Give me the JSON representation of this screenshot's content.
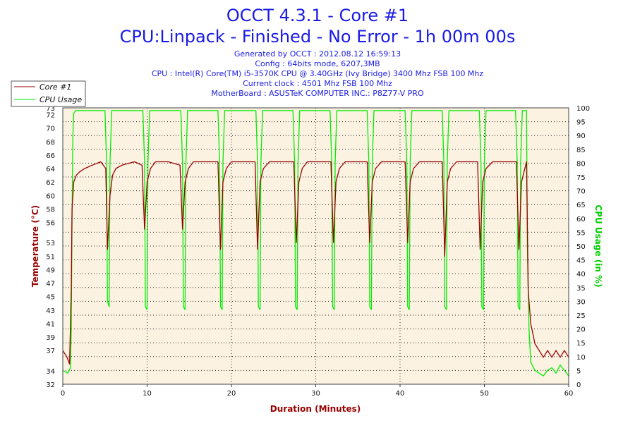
{
  "header": {
    "title_line1": "OCCT 4.3.1 - Core #1",
    "title_line2": "CPU:Linpack - Finished - No Error - 1h 00m 00s",
    "info_lines": [
      "Generated by OCCT : 2012.08.12 16:59:13",
      "Config : 64bits mode, 6207,3MB",
      "CPU : Intel(R) Core(TM) i5-3570K CPU @ 3.40GHz (Ivy Bridge) 3400 Mhz FSB 100 Mhz",
      "Current clock : 4501 Mhz FSB 100 Mhz",
      "MotherBoard : ASUSTeK COMPUTER INC.: P8Z77-V PRO"
    ]
  },
  "colors": {
    "plot_bg": "#fbf2e2",
    "temp_series": "#990000",
    "usage_series": "#00ee00",
    "title": "#1a1ae6",
    "axis_left_label": "#990000",
    "axis_right_label": "#00cc00",
    "axis_bottom_label": "#990000",
    "grid": "#222222"
  },
  "chart_data": {
    "type": "line",
    "title": "OCCT 4.3.1 - Core #1",
    "subtitle": "CPU:Linpack - Finished - No Error - 1h 00m 00s",
    "xlabel": "Duration (Minutes)",
    "ylabel": "Temperature (°C)",
    "y2label": "CPU Usage (in %)",
    "xlim": [
      0,
      60
    ],
    "ylim": [
      32,
      73
    ],
    "y2lim": [
      0,
      100
    ],
    "x_ticks": [
      0,
      10,
      20,
      30,
      40,
      50,
      60
    ],
    "y_ticks": [
      32,
      34,
      37,
      39,
      41,
      43,
      45,
      47,
      49,
      51,
      53,
      56,
      58,
      60,
      62,
      64,
      66,
      68,
      70,
      72,
      73
    ],
    "y2_ticks": [
      0,
      5,
      10,
      15,
      20,
      25,
      30,
      35,
      40,
      45,
      50,
      55,
      60,
      65,
      70,
      75,
      80,
      85,
      90,
      95,
      100
    ],
    "grid": true,
    "legend": {
      "position": "top-left",
      "entries": [
        "Core #1",
        "CPU Usage"
      ]
    },
    "series": [
      {
        "name": "Core #1",
        "axis": "left",
        "x": [
          0,
          0.5,
          0.8,
          1.0,
          1.1,
          1.3,
          1.6,
          2.0,
          2.6,
          3.5,
          4.5,
          5.1,
          5.3,
          5.6,
          5.9,
          6.3,
          7.0,
          8.5,
          9.4,
          9.7,
          10.0,
          10.4,
          11.0,
          12.5,
          13.9,
          14.2,
          14.5,
          14.9,
          15.5,
          17.0,
          18.4,
          18.7,
          19.0,
          19.4,
          20.0,
          21.5,
          22.8,
          23.1,
          23.4,
          23.8,
          24.5,
          26.0,
          27.4,
          27.7,
          28.0,
          28.4,
          29.0,
          30.5,
          31.8,
          32.1,
          32.4,
          32.8,
          33.5,
          35.0,
          36.1,
          36.4,
          36.7,
          37.1,
          37.8,
          39.5,
          40.6,
          40.9,
          41.2,
          41.6,
          42.3,
          44.0,
          45.0,
          45.3,
          45.6,
          46.0,
          46.7,
          48.2,
          49.2,
          49.5,
          49.8,
          50.2,
          51.0,
          52.5,
          53.8,
          54.1,
          54.4,
          54.8,
          55.0,
          55.2,
          55.5,
          56.0,
          56.5,
          57.0,
          57.5,
          58.0,
          58.5,
          59.0,
          59.5,
          60.0
        ],
        "y": [
          37,
          36,
          35,
          46,
          58,
          62,
          63,
          63.5,
          64,
          64.5,
          65,
          64,
          52,
          60,
          63,
          64,
          64.5,
          65,
          64.5,
          55,
          62,
          64,
          65,
          65,
          64.5,
          55,
          62,
          64,
          65,
          65,
          65,
          52,
          62,
          64,
          65,
          65,
          65,
          52,
          62,
          64,
          65,
          65,
          65,
          53,
          62,
          64,
          65,
          65,
          65,
          53,
          62,
          64,
          65,
          65,
          65,
          53,
          62,
          64,
          65,
          65,
          65,
          53,
          62,
          64,
          65,
          65,
          65,
          51,
          62,
          64,
          65,
          65,
          65,
          52,
          62,
          64,
          65,
          65,
          65,
          52,
          62,
          64,
          65,
          46,
          41,
          38,
          37,
          36,
          37,
          36,
          37,
          36,
          37,
          36
        ]
      },
      {
        "name": "CPU Usage",
        "axis": "right",
        "x": [
          0,
          0.6,
          0.9,
          1.0,
          1.1,
          1.2,
          1.3,
          1.5,
          5.0,
          5.2,
          5.3,
          5.5,
          5.6,
          5.8,
          9.5,
          9.7,
          9.8,
          10.0,
          10.1,
          10.3,
          14.0,
          14.2,
          14.3,
          14.5,
          14.6,
          14.8,
          18.4,
          18.6,
          18.7,
          18.9,
          19.0,
          19.2,
          22.9,
          23.1,
          23.2,
          23.4,
          23.5,
          23.7,
          27.3,
          27.5,
          27.6,
          27.8,
          27.9,
          28.1,
          31.7,
          31.9,
          32.0,
          32.2,
          32.3,
          32.5,
          36.1,
          36.3,
          36.4,
          36.6,
          36.7,
          36.9,
          40.6,
          40.8,
          40.9,
          41.1,
          41.2,
          41.4,
          45.0,
          45.2,
          45.3,
          45.5,
          45.6,
          45.8,
          49.4,
          49.6,
          49.7,
          49.9,
          50.0,
          50.2,
          53.7,
          53.9,
          54.0,
          54.2,
          54.3,
          54.5,
          54.8,
          55.0,
          55.1,
          55.3,
          55.5,
          56.0,
          56.5,
          57.0,
          57.5,
          58.0,
          58.5,
          59.0,
          59.5,
          60.0
        ],
        "y": [
          5,
          4,
          6,
          20,
          60,
          90,
          98,
          99,
          99,
          80,
          30,
          28,
          80,
          99,
          99,
          80,
          28,
          27,
          80,
          99,
          99,
          80,
          28,
          27,
          80,
          99,
          99,
          80,
          28,
          27,
          80,
          99,
          99,
          80,
          28,
          27,
          80,
          99,
          99,
          80,
          28,
          27,
          80,
          99,
          99,
          80,
          28,
          27,
          80,
          99,
          99,
          80,
          28,
          27,
          80,
          99,
          99,
          80,
          28,
          27,
          80,
          99,
          99,
          80,
          28,
          27,
          80,
          99,
          99,
          80,
          28,
          27,
          80,
          99,
          99,
          80,
          28,
          27,
          80,
          99,
          99,
          99,
          50,
          20,
          8,
          5,
          4,
          3,
          5,
          6,
          4,
          7,
          5,
          3
        ]
      }
    ]
  }
}
